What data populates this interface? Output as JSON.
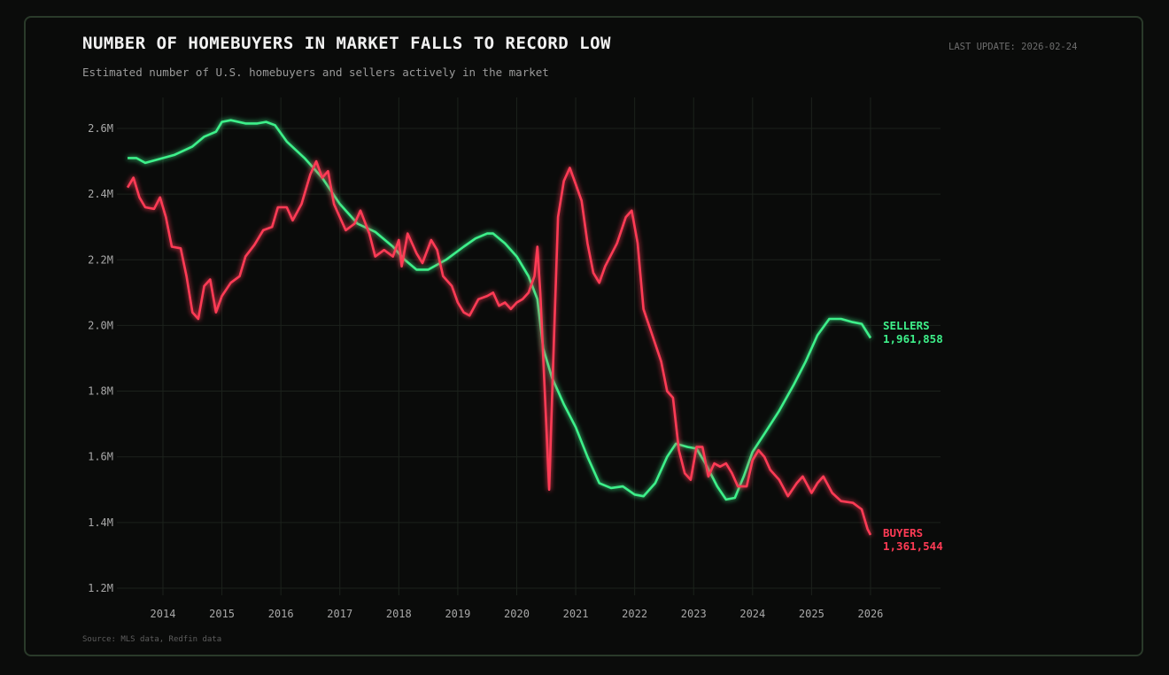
{
  "header": {
    "title": "NUMBER OF HOMEBUYERS IN MARKET FALLS TO RECORD LOW",
    "subtitle": "Estimated number of U.S. homebuyers and sellers actively in the market",
    "last_update": "LAST UPDATE: 2026-02-24"
  },
  "footer": {
    "source": "Source: MLS data, Redfin data"
  },
  "colors": {
    "sellers": "#3ef08a",
    "buyers": "#ff3b55",
    "grid": "#1c221c",
    "background": "#0a0b0a"
  },
  "labels": {
    "sellers_name": "SELLERS",
    "sellers_value": "1,961,858",
    "buyers_name": "BUYERS",
    "buyers_value": "1,361,544"
  },
  "chart_data": {
    "type": "line",
    "title": "NUMBER OF HOMEBUYERS IN MARKET FALLS TO RECORD LOW",
    "subtitle": "Estimated number of U.S. homebuyers and sellers actively in the market",
    "xlabel": "",
    "ylabel": "",
    "ylim": [
      1.2,
      2.65
    ],
    "xlim": [
      2013.4,
      2027.2
    ],
    "grid": true,
    "legend": "inline-end-labels",
    "y_ticks": [
      "1.2M",
      "1.4M",
      "1.6M",
      "1.8M",
      "2.0M",
      "2.2M",
      "2.4M",
      "2.6M"
    ],
    "x_ticks": [
      "2014",
      "2015",
      "2016",
      "2017",
      "2018",
      "2019",
      "2020",
      "2021",
      "2022",
      "2023",
      "2024",
      "2025",
      "2026"
    ],
    "series": [
      {
        "name": "SELLERS",
        "end_value": 1961858,
        "points": [
          [
            2013.4,
            2.51
          ],
          [
            2013.55,
            2.51
          ],
          [
            2013.7,
            2.495
          ],
          [
            2013.9,
            2.505
          ],
          [
            2014.2,
            2.52
          ],
          [
            2014.5,
            2.545
          ],
          [
            2014.7,
            2.575
          ],
          [
            2014.9,
            2.59
          ],
          [
            2015.0,
            2.62
          ],
          [
            2015.15,
            2.625
          ],
          [
            2015.4,
            2.615
          ],
          [
            2015.6,
            2.615
          ],
          [
            2015.75,
            2.62
          ],
          [
            2015.9,
            2.61
          ],
          [
            2016.1,
            2.56
          ],
          [
            2016.4,
            2.51
          ],
          [
            2016.7,
            2.45
          ],
          [
            2017.0,
            2.37
          ],
          [
            2017.3,
            2.31
          ],
          [
            2017.6,
            2.285
          ],
          [
            2017.9,
            2.24
          ],
          [
            2018.1,
            2.2
          ],
          [
            2018.3,
            2.17
          ],
          [
            2018.5,
            2.17
          ],
          [
            2018.8,
            2.2
          ],
          [
            2019.1,
            2.24
          ],
          [
            2019.3,
            2.265
          ],
          [
            2019.5,
            2.28
          ],
          [
            2019.6,
            2.28
          ],
          [
            2019.8,
            2.25
          ],
          [
            2020.0,
            2.21
          ],
          [
            2020.2,
            2.15
          ],
          [
            2020.35,
            2.08
          ],
          [
            2020.45,
            1.93
          ],
          [
            2020.6,
            1.84
          ],
          [
            2020.8,
            1.76
          ],
          [
            2021.0,
            1.69
          ],
          [
            2021.2,
            1.6
          ],
          [
            2021.4,
            1.52
          ],
          [
            2021.6,
            1.505
          ],
          [
            2021.8,
            1.51
          ],
          [
            2022.0,
            1.485
          ],
          [
            2022.15,
            1.48
          ],
          [
            2022.35,
            1.52
          ],
          [
            2022.55,
            1.6
          ],
          [
            2022.7,
            1.64
          ],
          [
            2022.9,
            1.63
          ],
          [
            2023.05,
            1.625
          ],
          [
            2023.2,
            1.58
          ],
          [
            2023.4,
            1.51
          ],
          [
            2023.55,
            1.47
          ],
          [
            2023.7,
            1.475
          ],
          [
            2023.85,
            1.54
          ],
          [
            2024.0,
            1.615
          ],
          [
            2024.2,
            1.67
          ],
          [
            2024.45,
            1.74
          ],
          [
            2024.7,
            1.82
          ],
          [
            2024.9,
            1.89
          ],
          [
            2025.1,
            1.97
          ],
          [
            2025.3,
            2.02
          ],
          [
            2025.5,
            2.02
          ],
          [
            2025.7,
            2.01
          ],
          [
            2025.85,
            2.005
          ],
          [
            2026.0,
            1.962
          ]
        ]
      },
      {
        "name": "BUYERS",
        "end_value": 1361544,
        "points": [
          [
            2013.4,
            2.42
          ],
          [
            2013.5,
            2.45
          ],
          [
            2013.6,
            2.39
          ],
          [
            2013.7,
            2.36
          ],
          [
            2013.85,
            2.355
          ],
          [
            2013.95,
            2.39
          ],
          [
            2014.05,
            2.33
          ],
          [
            2014.15,
            2.24
          ],
          [
            2014.3,
            2.235
          ],
          [
            2014.4,
            2.15
          ],
          [
            2014.5,
            2.04
          ],
          [
            2014.6,
            2.02
          ],
          [
            2014.7,
            2.12
          ],
          [
            2014.8,
            2.14
          ],
          [
            2014.9,
            2.04
          ],
          [
            2015.0,
            2.09
          ],
          [
            2015.15,
            2.13
          ],
          [
            2015.3,
            2.15
          ],
          [
            2015.4,
            2.21
          ],
          [
            2015.55,
            2.245
          ],
          [
            2015.7,
            2.29
          ],
          [
            2015.85,
            2.3
          ],
          [
            2015.95,
            2.36
          ],
          [
            2016.1,
            2.36
          ],
          [
            2016.2,
            2.32
          ],
          [
            2016.35,
            2.37
          ],
          [
            2016.5,
            2.46
          ],
          [
            2016.6,
            2.5
          ],
          [
            2016.7,
            2.45
          ],
          [
            2016.8,
            2.47
          ],
          [
            2016.9,
            2.37
          ],
          [
            2017.0,
            2.33
          ],
          [
            2017.1,
            2.29
          ],
          [
            2017.25,
            2.31
          ],
          [
            2017.35,
            2.35
          ],
          [
            2017.5,
            2.28
          ],
          [
            2017.6,
            2.21
          ],
          [
            2017.75,
            2.23
          ],
          [
            2017.9,
            2.21
          ],
          [
            2018.0,
            2.26
          ],
          [
            2018.05,
            2.18
          ],
          [
            2018.15,
            2.28
          ],
          [
            2018.3,
            2.22
          ],
          [
            2018.4,
            2.19
          ],
          [
            2018.55,
            2.26
          ],
          [
            2018.65,
            2.23
          ],
          [
            2018.75,
            2.15
          ],
          [
            2018.9,
            2.12
          ],
          [
            2019.0,
            2.07
          ],
          [
            2019.1,
            2.04
          ],
          [
            2019.2,
            2.03
          ],
          [
            2019.35,
            2.08
          ],
          [
            2019.5,
            2.09
          ],
          [
            2019.6,
            2.1
          ],
          [
            2019.7,
            2.06
          ],
          [
            2019.8,
            2.07
          ],
          [
            2019.9,
            2.05
          ],
          [
            2020.0,
            2.07
          ],
          [
            2020.1,
            2.08
          ],
          [
            2020.2,
            2.1
          ],
          [
            2020.3,
            2.15
          ],
          [
            2020.35,
            2.24
          ],
          [
            2020.4,
            2.1
          ],
          [
            2020.5,
            1.7
          ],
          [
            2020.55,
            1.5
          ],
          [
            2020.62,
            1.9
          ],
          [
            2020.7,
            2.33
          ],
          [
            2020.8,
            2.44
          ],
          [
            2020.9,
            2.48
          ],
          [
            2021.0,
            2.43
          ],
          [
            2021.1,
            2.38
          ],
          [
            2021.2,
            2.25
          ],
          [
            2021.3,
            2.16
          ],
          [
            2021.4,
            2.13
          ],
          [
            2021.5,
            2.18
          ],
          [
            2021.7,
            2.25
          ],
          [
            2021.85,
            2.33
          ],
          [
            2021.95,
            2.35
          ],
          [
            2022.05,
            2.25
          ],
          [
            2022.15,
            2.05
          ],
          [
            2022.3,
            1.97
          ],
          [
            2022.45,
            1.89
          ],
          [
            2022.55,
            1.8
          ],
          [
            2022.65,
            1.78
          ],
          [
            2022.75,
            1.62
          ],
          [
            2022.85,
            1.55
          ],
          [
            2022.95,
            1.53
          ],
          [
            2023.05,
            1.63
          ],
          [
            2023.15,
            1.63
          ],
          [
            2023.25,
            1.54
          ],
          [
            2023.35,
            1.58
          ],
          [
            2023.45,
            1.57
          ],
          [
            2023.55,
            1.58
          ],
          [
            2023.65,
            1.55
          ],
          [
            2023.75,
            1.51
          ],
          [
            2023.9,
            1.51
          ],
          [
            2024.0,
            1.59
          ],
          [
            2024.1,
            1.62
          ],
          [
            2024.2,
            1.6
          ],
          [
            2024.3,
            1.56
          ],
          [
            2024.45,
            1.53
          ],
          [
            2024.6,
            1.48
          ],
          [
            2024.75,
            1.52
          ],
          [
            2024.85,
            1.54
          ],
          [
            2025.0,
            1.49
          ],
          [
            2025.1,
            1.52
          ],
          [
            2025.2,
            1.54
          ],
          [
            2025.35,
            1.49
          ],
          [
            2025.5,
            1.465
          ],
          [
            2025.7,
            1.46
          ],
          [
            2025.85,
            1.44
          ],
          [
            2025.95,
            1.38
          ],
          [
            2026.0,
            1.362
          ]
        ]
      }
    ]
  }
}
